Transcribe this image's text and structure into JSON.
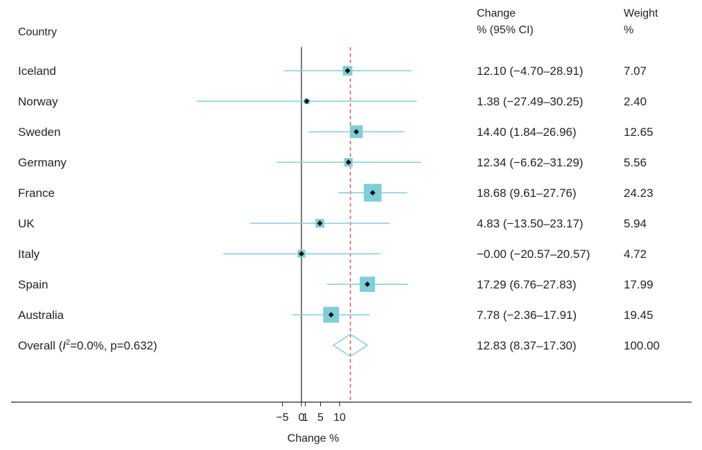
{
  "headers": {
    "country": "Country",
    "change_line1": "Change",
    "change_line2": "% (95% CI)",
    "weight_line1": "Weight",
    "weight_line2": "%"
  },
  "overall": {
    "label_prefix": "Overall  (",
    "label_i": "I",
    "label_sup": "2",
    "label_rest": "=0.0%, p=0.632)"
  },
  "colors": {
    "ci": "#7fcfd8",
    "box": "#7fcfd8",
    "point": "#111111",
    "reference": "#e0544f",
    "axis": "#231f20"
  },
  "chart_data": {
    "type": "forest",
    "title": "",
    "xlabel": "Change %",
    "ylabel": "",
    "x_tick_labels": [
      "−5",
      "0",
      "1",
      "5",
      "10"
    ],
    "x_ticks": [
      -5,
      0,
      1,
      5,
      10
    ],
    "xlim": [
      -27.5,
      84
    ],
    "null_line": 0,
    "pooled_line": 12.83,
    "studies": [
      {
        "country": "Iceland",
        "est": 12.1,
        "lo": -4.7,
        "hi": 28.91,
        "ci_text": "12.10 (−4.70–28.91)",
        "weight": 7.07,
        "weight_text": "7.07"
      },
      {
        "country": "Norway",
        "est": 1.38,
        "lo": -27.49,
        "hi": 30.25,
        "ci_text": "1.38 (−27.49–30.25)",
        "weight": 2.4,
        "weight_text": "2.40"
      },
      {
        "country": "Sweden",
        "est": 14.4,
        "lo": 1.84,
        "hi": 26.96,
        "ci_text": "14.40 (1.84–26.96)",
        "weight": 12.65,
        "weight_text": "12.65"
      },
      {
        "country": "Germany",
        "est": 12.34,
        "lo": -6.62,
        "hi": 31.29,
        "ci_text": "12.34 (−6.62–31.29)",
        "weight": 5.56,
        "weight_text": "5.56"
      },
      {
        "country": "France",
        "est": 18.68,
        "lo": 9.61,
        "hi": 27.76,
        "ci_text": "18.68 (9.61–27.76)",
        "weight": 24.23,
        "weight_text": "24.23"
      },
      {
        "country": "UK",
        "est": 4.83,
        "lo": -13.5,
        "hi": 23.17,
        "ci_text": "4.83 (−13.50–23.17)",
        "weight": 5.94,
        "weight_text": "5.94"
      },
      {
        "country": "Italy",
        "est": -0.0,
        "lo": -20.57,
        "hi": 20.57,
        "ci_text": "−0.00 (−20.57–20.57)",
        "weight": 4.72,
        "weight_text": "4.72"
      },
      {
        "country": "Spain",
        "est": 17.29,
        "lo": 6.76,
        "hi": 27.83,
        "ci_text": "17.29 (6.76–27.83)",
        "weight": 17.99,
        "weight_text": "17.99"
      },
      {
        "country": "Australia",
        "est": 7.78,
        "lo": -2.36,
        "hi": 17.91,
        "ci_text": "7.78 (−2.36–17.91)",
        "weight": 19.45,
        "weight_text": "19.45"
      }
    ],
    "overall": {
      "est": 12.83,
      "lo": 8.37,
      "hi": 17.3,
      "ci_text": "12.83 (8.37–17.30)",
      "weight": 100.0,
      "weight_text": "100.00"
    }
  }
}
